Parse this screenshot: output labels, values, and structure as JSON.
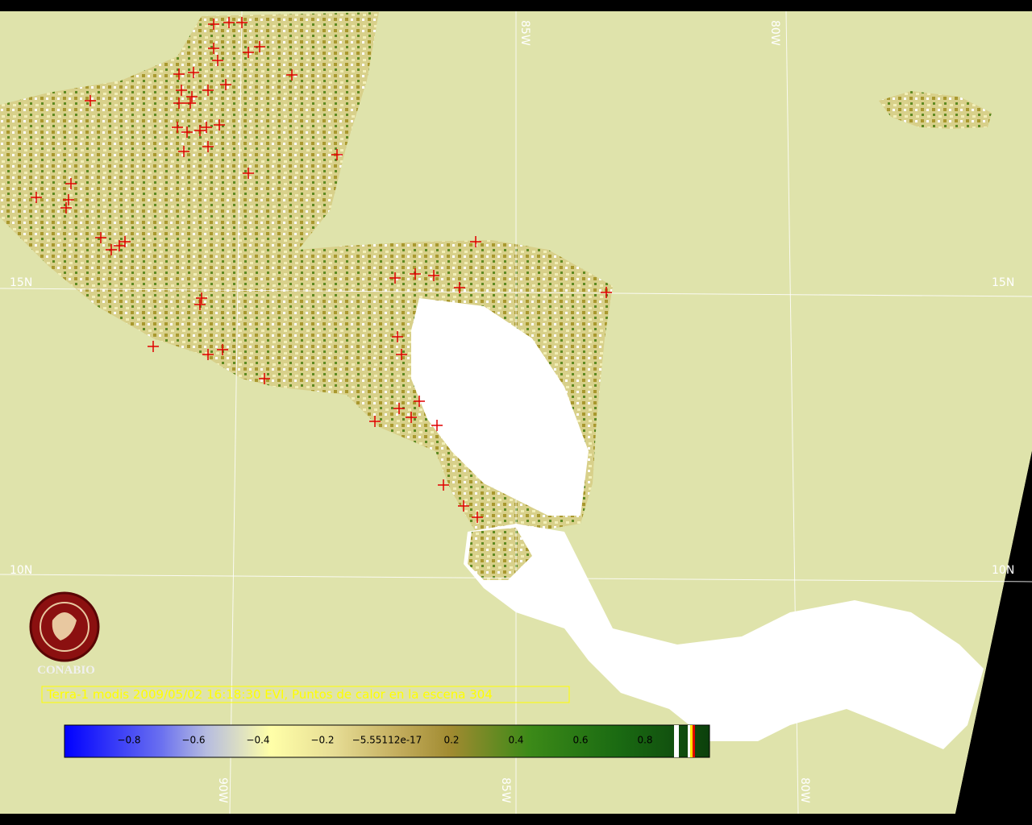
{
  "map": {
    "grid_labels": {
      "top": [
        "85W",
        "80W"
      ],
      "left": [
        "15N",
        "10N"
      ],
      "right": [
        "15N",
        "10N"
      ],
      "bottom": [
        "90W",
        "85W",
        "80W"
      ]
    },
    "logo": "CONABIO",
    "caption": "Terra-1 modis 2009/05/02 16:18:30 EVI, Puntos de calor en la escena 304",
    "colorbar": {
      "range": [
        -1,
        1
      ],
      "ticks": [
        {
          "value": -0.8,
          "label": "−0.8"
        },
        {
          "value": -0.6,
          "label": "−0.6"
        },
        {
          "value": -0.4,
          "label": "−0.4"
        },
        {
          "value": -0.2,
          "label": "−0.2"
        },
        {
          "value": -5.55112e-17,
          "label": "−5.55112e-17"
        },
        {
          "value": 0.2,
          "label": "0.2"
        },
        {
          "value": 0.4,
          "label": "0.4"
        },
        {
          "value": 0.6,
          "label": "0.6"
        },
        {
          "value": 0.8,
          "label": "0.8"
        }
      ]
    }
  }
}
